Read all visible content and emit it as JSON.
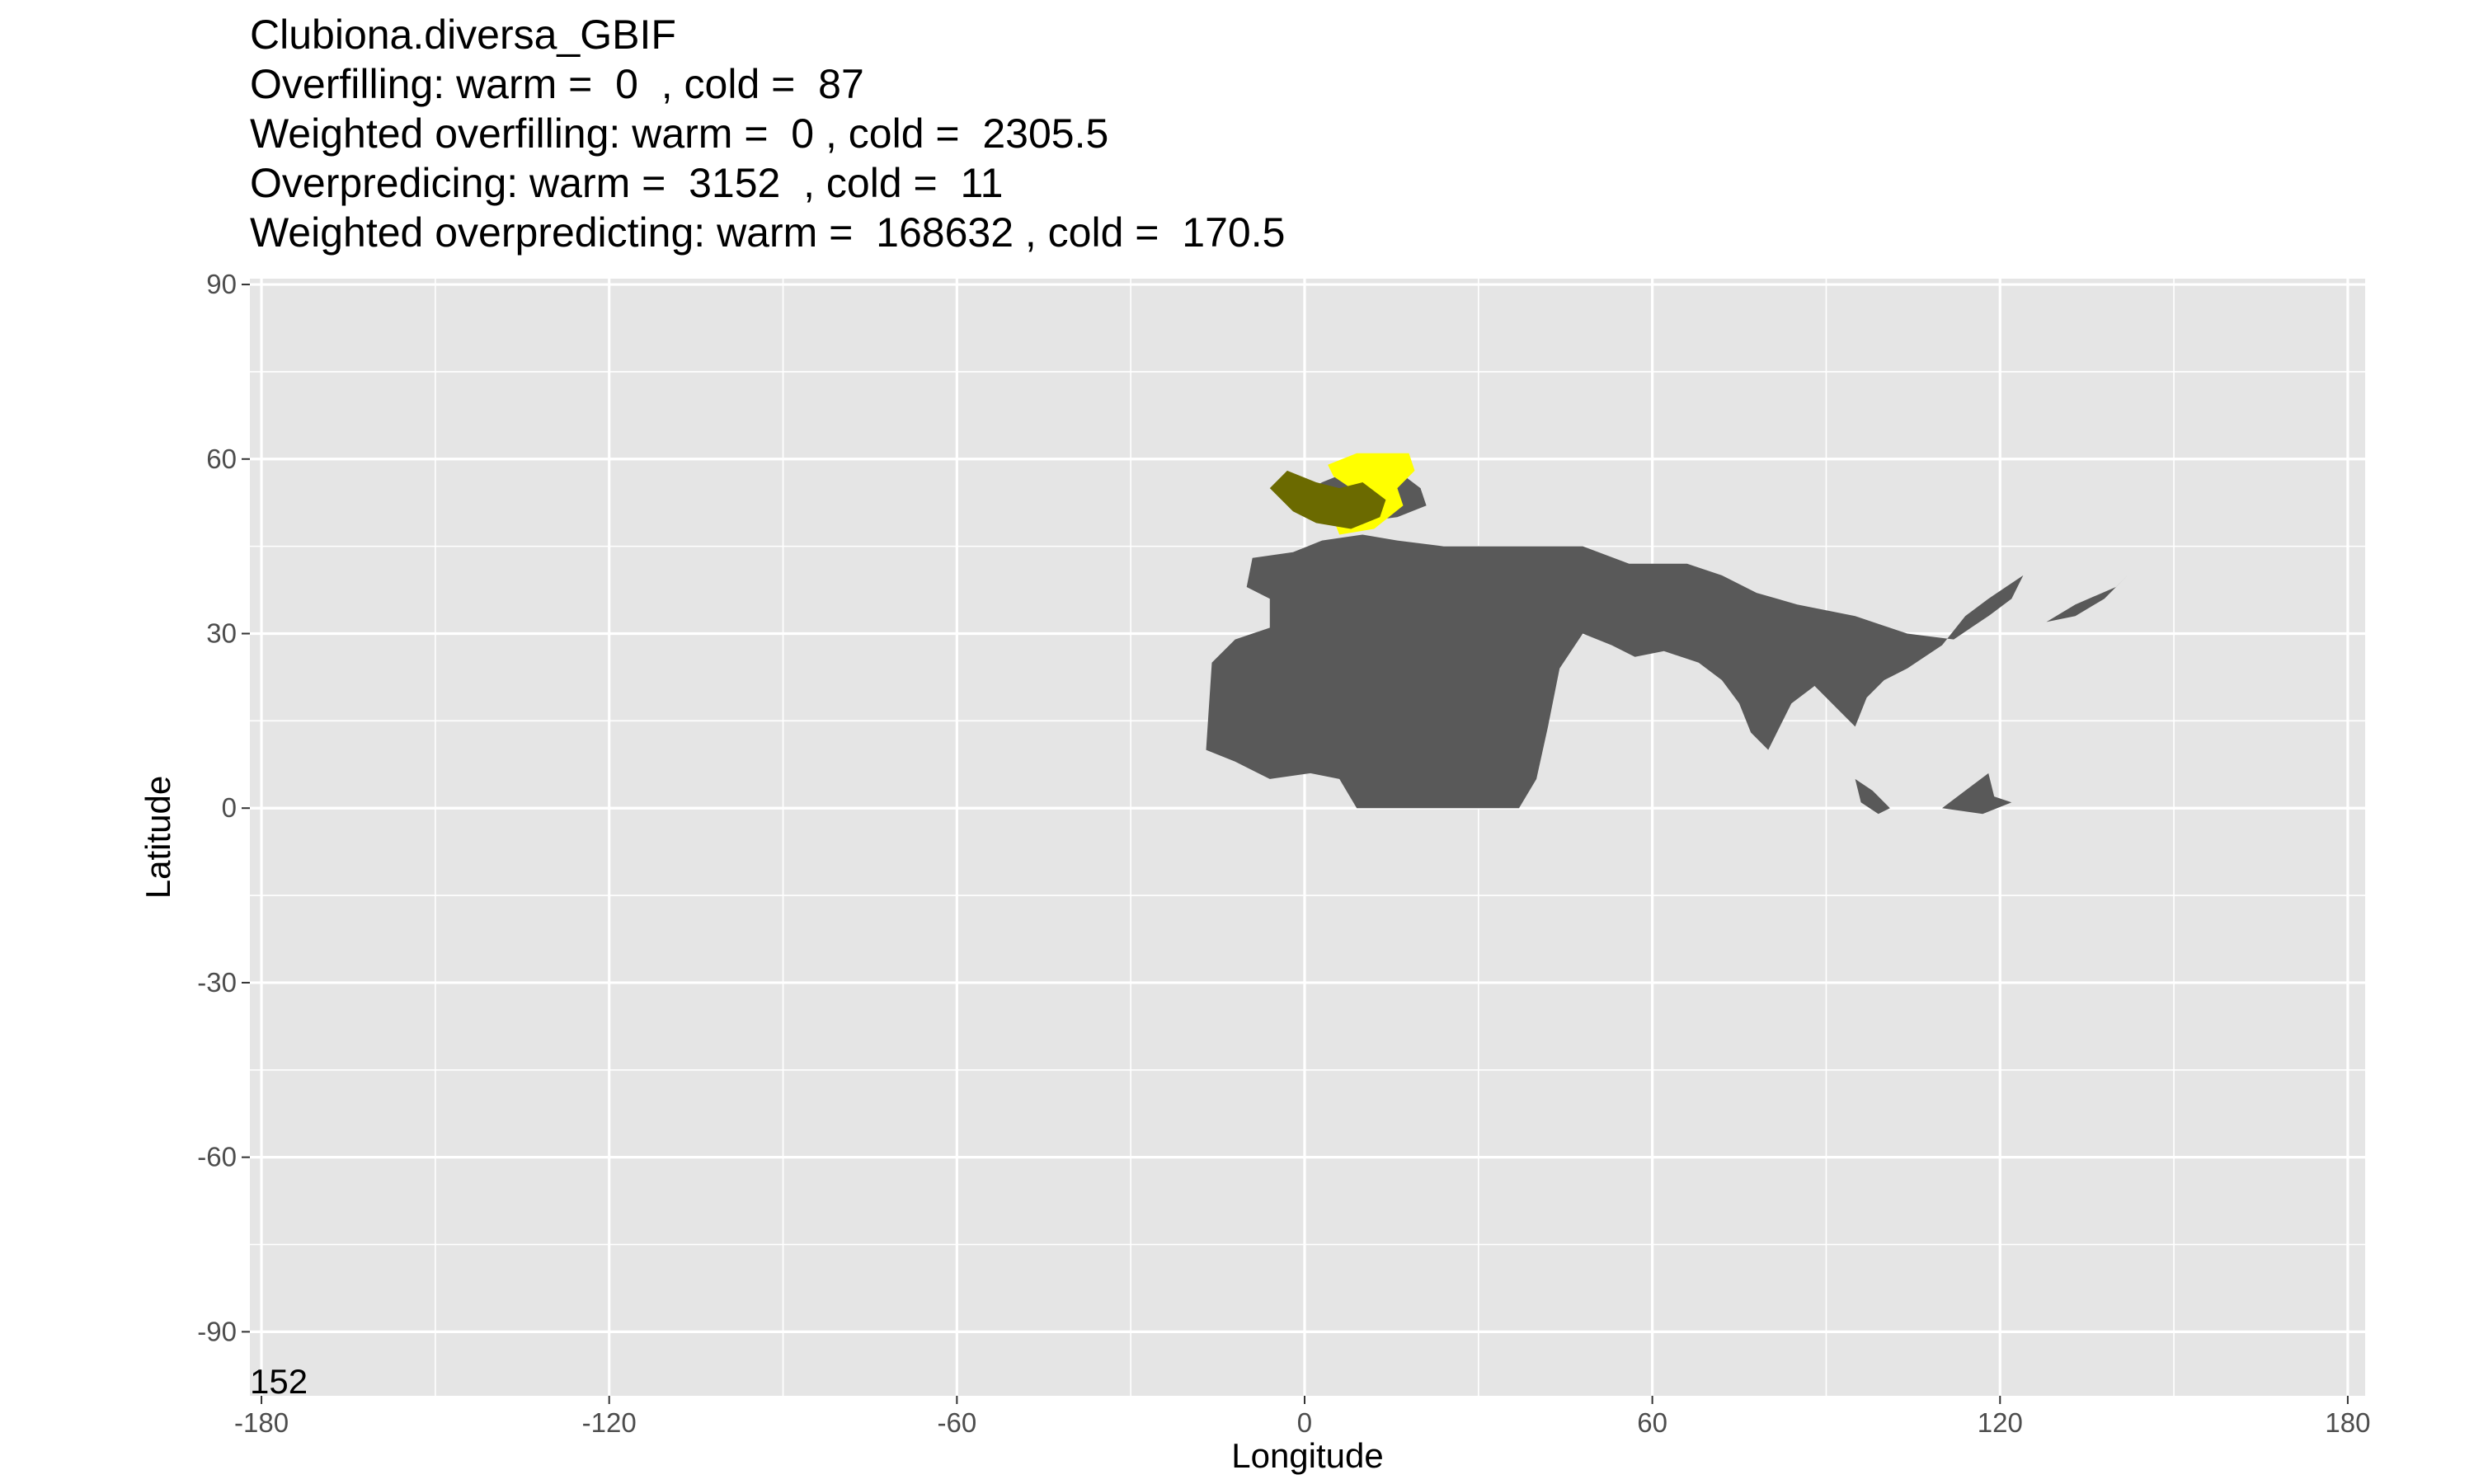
{
  "chart_data": {
    "type": "heatmap",
    "title_lines": [
      "Clubiona.diversa_GBIF",
      "Overfilling: warm =  0  , cold =  87",
      "Weighted overfilling: warm =  0 , cold =  2305.5",
      "Overpredicing: warm =  3152  , cold =  11",
      "Weighted overpredicting: warm =  168632 , cold =  170.5"
    ],
    "xlabel": "Longitude",
    "ylabel": "Latitude",
    "xlim": [
      -182,
      183
    ],
    "ylim": [
      -101,
      91
    ],
    "x_ticks": [
      -180,
      -120,
      -60,
      0,
      60,
      120,
      180
    ],
    "y_ticks": [
      90,
      60,
      30,
      0,
      -30,
      -60,
      -90
    ],
    "x_tick_labels": [
      "-180",
      "-120",
      "-60",
      "0",
      "60",
      "120",
      "180"
    ],
    "y_tick_labels": [
      "90",
      "60",
      "30",
      "0",
      "-30",
      "-60",
      "-90"
    ],
    "grid": true,
    "corner_label": "152",
    "colors": {
      "panel": "#e5e5e5",
      "grid": "#ffffff",
      "range": "#595959",
      "overlap": "#6b6a00",
      "observed": "#ffff00"
    },
    "series": [
      {
        "fill": "#595959",
        "regions": [
          [
            [
              -17,
              10
            ],
            [
              -16,
              25
            ],
            [
              -12,
              29
            ],
            [
              -6,
              31
            ],
            [
              -6,
              36
            ],
            [
              -10,
              38
            ],
            [
              -9,
              43
            ],
            [
              -2,
              44
            ],
            [
              3,
              46
            ],
            [
              10,
              47
            ],
            [
              16,
              46
            ],
            [
              24,
              45
            ],
            [
              32,
              45
            ],
            [
              40,
              45
            ],
            [
              48,
              45
            ],
            [
              56,
              42
            ],
            [
              66,
              42
            ],
            [
              72,
              40
            ],
            [
              78,
              37
            ],
            [
              85,
              35
            ],
            [
              95,
              33
            ],
            [
              104,
              30
            ],
            [
              112,
              29
            ],
            [
              115,
              31
            ],
            [
              118,
              33
            ],
            [
              122,
              36
            ],
            [
              124,
              40
            ],
            [
              121,
              38
            ],
            [
              118,
              36
            ],
            [
              114,
              33
            ],
            [
              110,
              28
            ],
            [
              104,
              24
            ],
            [
              100,
              22
            ],
            [
              97,
              19
            ],
            [
              95,
              14
            ],
            [
              92,
              17
            ],
            [
              88,
              21
            ],
            [
              84,
              18
            ],
            [
              80,
              10
            ],
            [
              77,
              13
            ],
            [
              75,
              18
            ],
            [
              72,
              22
            ],
            [
              68,
              25
            ],
            [
              62,
              27
            ],
            [
              57,
              26
            ],
            [
              53,
              28
            ],
            [
              48,
              30
            ],
            [
              44,
              24
            ],
            [
              42,
              14
            ],
            [
              40,
              5
            ],
            [
              37,
              0
            ],
            [
              9,
              0
            ],
            [
              6,
              5
            ],
            [
              1,
              6
            ],
            [
              -6,
              5
            ],
            [
              -12,
              8
            ],
            [
              -17,
              10
            ]
          ],
          [
            [
              128,
              32
            ],
            [
              133,
              35
            ],
            [
              140,
              38
            ],
            [
              142,
              40
            ],
            [
              138,
              36
            ],
            [
              133,
              33
            ],
            [
              128,
              32
            ]
          ],
          [
            [
              95,
              5
            ],
            [
              98,
              3
            ],
            [
              101,
              0
            ],
            [
              99,
              -1
            ],
            [
              96,
              1
            ],
            [
              95,
              5
            ]
          ],
          [
            [
              110,
              0
            ],
            [
              114,
              3
            ],
            [
              118,
              6
            ],
            [
              119,
              2
            ],
            [
              122,
              1
            ],
            [
              117,
              -1
            ],
            [
              110,
              0
            ]
          ],
          [
            [
              -2,
              53
            ],
            [
              3,
              56
            ],
            [
              8,
              58
            ],
            [
              16,
              58
            ],
            [
              20,
              55
            ],
            [
              21,
              52
            ],
            [
              16,
              50
            ],
            [
              8,
              49
            ],
            [
              2,
              50
            ],
            [
              -2,
              53
            ]
          ]
        ]
      },
      {
        "fill": "#ffff00",
        "regions": [
          [
            [
              4,
              59
            ],
            [
              9,
              61
            ],
            [
              18,
              61
            ],
            [
              19,
              58
            ],
            [
              16,
              55
            ],
            [
              17,
              52
            ],
            [
              12,
              48
            ],
            [
              6,
              47
            ],
            [
              4,
              52
            ],
            [
              8,
              55
            ],
            [
              5,
              57
            ],
            [
              4,
              59
            ]
          ]
        ]
      },
      {
        "fill": "#6b6a00",
        "regions": [
          [
            [
              -6,
              55
            ],
            [
              -3,
              58
            ],
            [
              2,
              56
            ],
            [
              6,
              55
            ],
            [
              10,
              56
            ],
            [
              14,
              53
            ],
            [
              13,
              50
            ],
            [
              8,
              48
            ],
            [
              2,
              49
            ],
            [
              -2,
              51
            ],
            [
              -6,
              55
            ]
          ]
        ]
      }
    ]
  }
}
